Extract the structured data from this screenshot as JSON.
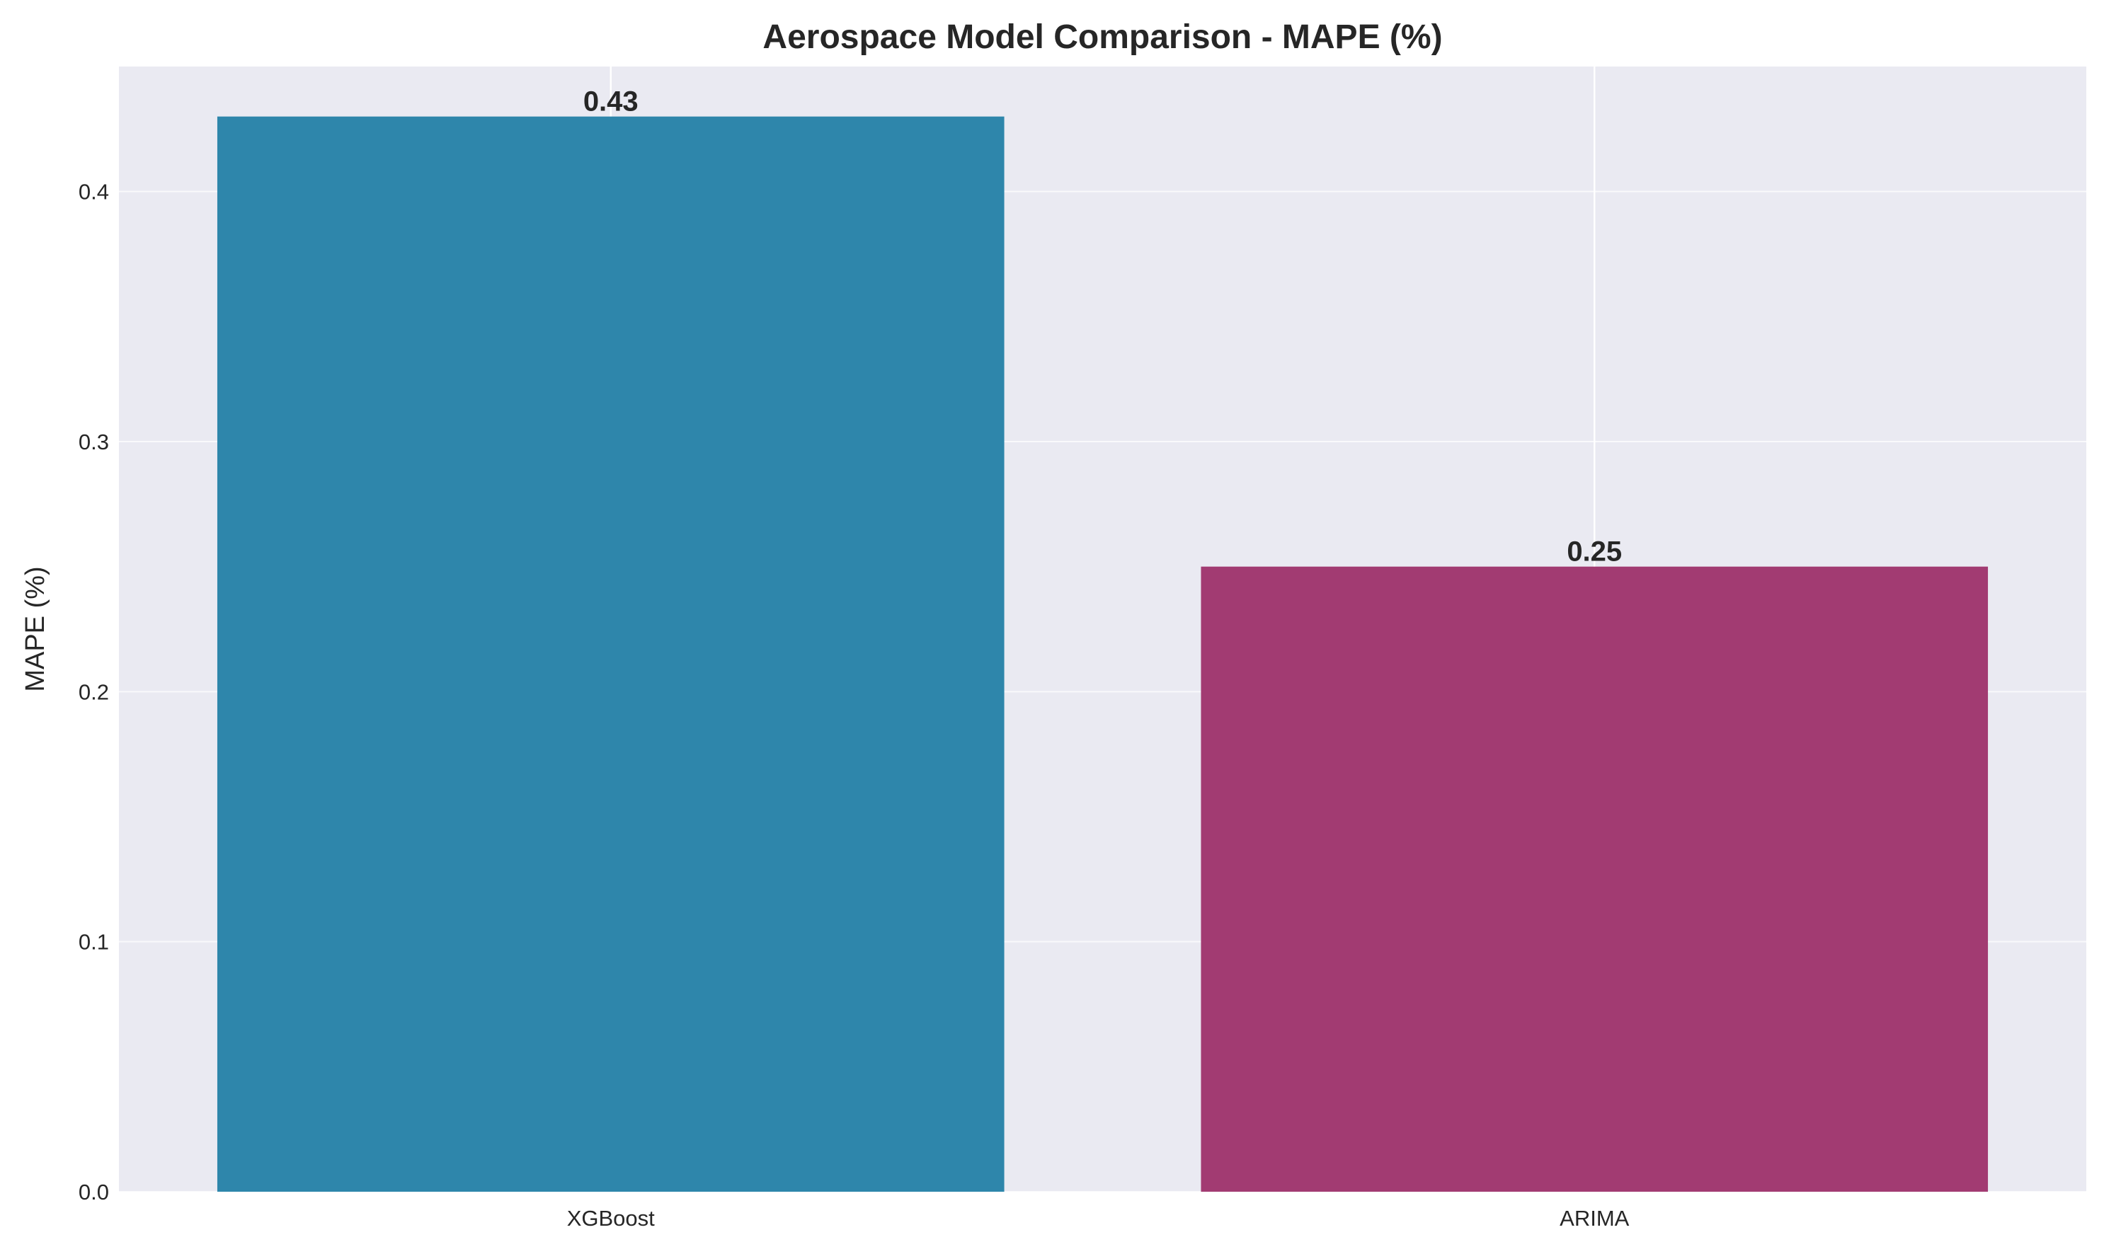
{
  "chart_data": {
    "type": "bar",
    "title": "Aerospace Model Comparison - MAPE (%)",
    "xlabel": "",
    "ylabel": "MAPE (%)",
    "categories": [
      "XGBoost",
      "ARIMA"
    ],
    "values": [
      0.43,
      0.25
    ],
    "value_labels": [
      "0.43",
      "0.25"
    ],
    "colors": [
      "#2e86ab",
      "#a23b72"
    ],
    "ylim": [
      0,
      0.45
    ],
    "yticks": [
      0.0,
      0.1,
      0.2,
      0.3,
      0.4
    ],
    "ytick_labels": [
      "0.0",
      "0.1",
      "0.2",
      "0.3",
      "0.4"
    ],
    "grid": true,
    "background_color": "#eaeaf2",
    "grid_color": "#ffffff"
  }
}
